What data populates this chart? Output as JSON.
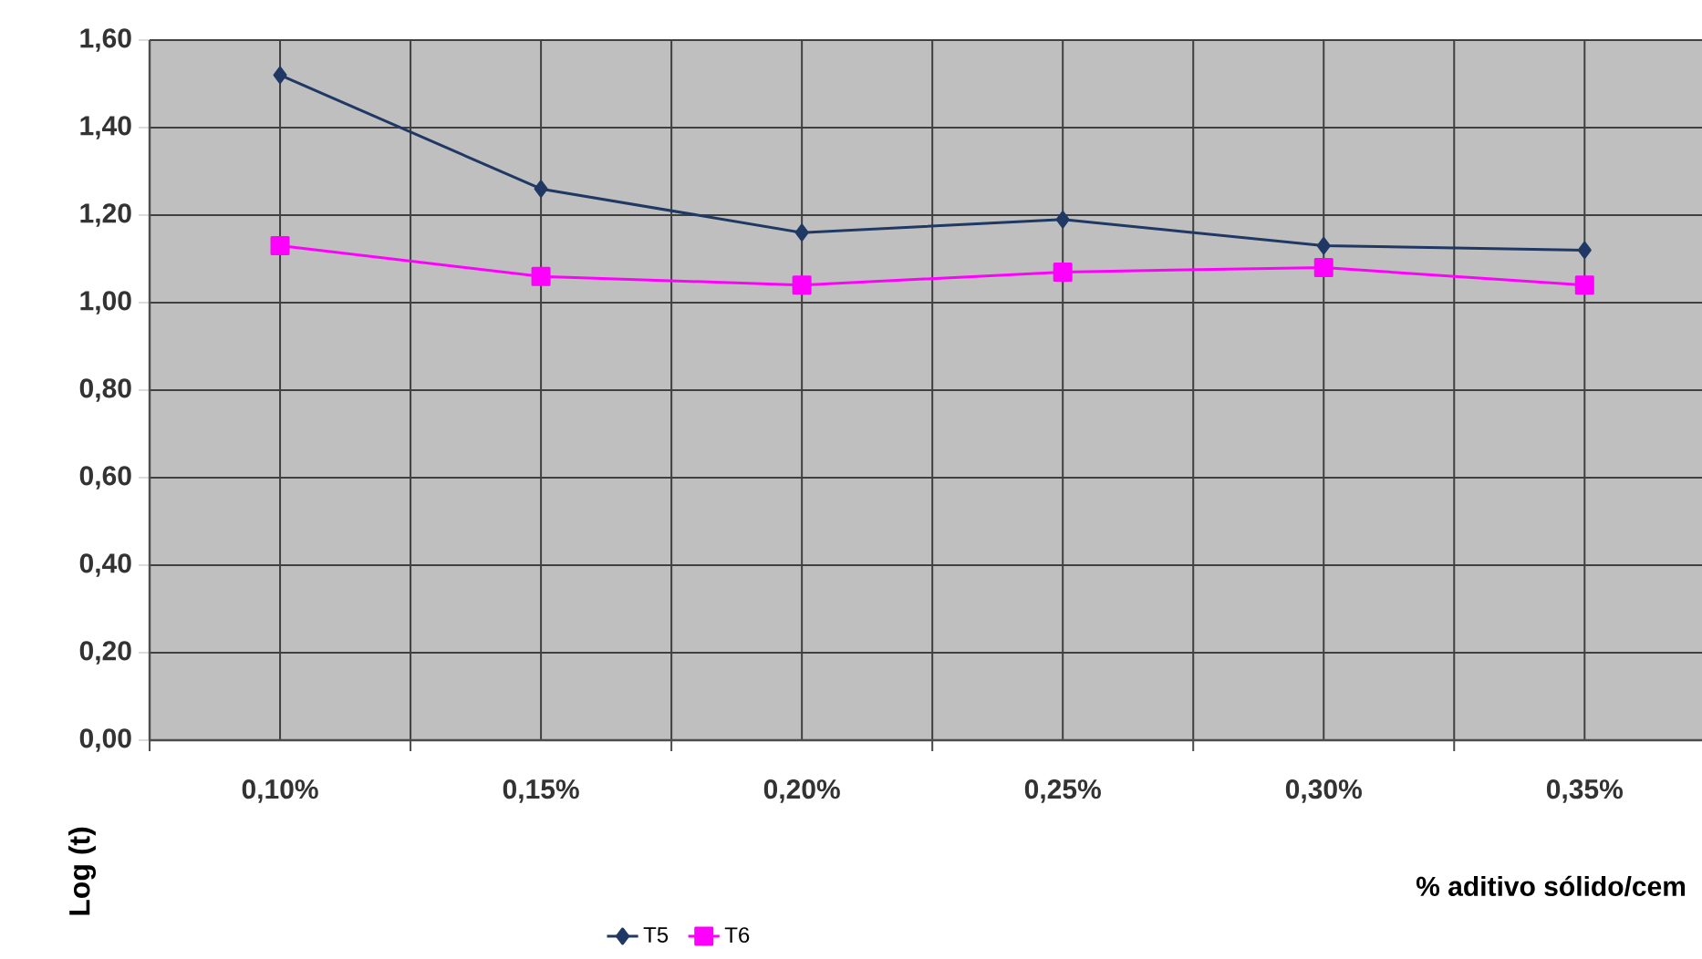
{
  "chart_data": {
    "type": "line",
    "xlabel": "% aditivo sólido/cem",
    "ylabel": "Log (t)",
    "categories": [
      "0,10%",
      "0,15%",
      "0,20%",
      "0,25%",
      "0,30%",
      "0,35%"
    ],
    "series": [
      {
        "name": "T5",
        "color": "#1f3864",
        "marker": "diamond",
        "values": [
          1.52,
          1.26,
          1.16,
          1.19,
          1.13,
          1.12
        ]
      },
      {
        "name": "T6",
        "color": "#ff00ff",
        "marker": "square",
        "values": [
          1.13,
          1.06,
          1.04,
          1.07,
          1.08,
          1.04
        ]
      }
    ],
    "ylim": [
      0,
      1.6
    ],
    "yticks": [
      {
        "value": 0,
        "label": "0,00"
      },
      {
        "value": 0.2,
        "label": "0,20"
      },
      {
        "value": 0.4,
        "label": "0,40"
      },
      {
        "value": 0.6,
        "label": "0,60"
      },
      {
        "value": 0.8,
        "label": "0,80"
      },
      {
        "value": 1.0,
        "label": "1,00"
      },
      {
        "value": 1.2,
        "label": "1,20"
      },
      {
        "value": 1.4,
        "label": "1,40"
      },
      {
        "value": 1.6,
        "label": "1,60"
      }
    ],
    "grid": true,
    "legend": "bottom",
    "line_style": "solid"
  }
}
